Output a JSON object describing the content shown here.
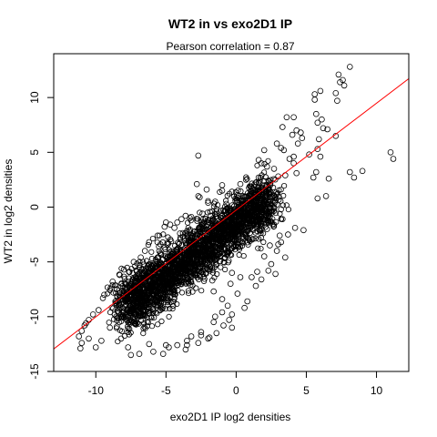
{
  "chart_data": {
    "type": "scatter",
    "title": "WT2 in vs exo2D1 IP",
    "subtitle": "Pearson correlation =  0.87",
    "xlabel": "exo2D1 IP log2 densities",
    "ylabel": "WT2 in log2 densities",
    "xlim": [
      -13,
      12.3
    ],
    "ylim": [
      -15,
      14
    ],
    "xticks": [
      -10,
      -5,
      0,
      5,
      10
    ],
    "yticks": [
      -15,
      -10,
      -5,
      0,
      5,
      10
    ],
    "grid": false,
    "legend": "none",
    "colors": {
      "points": "#000000",
      "fit_line": "#ff0000",
      "frame": "#000000"
    },
    "fit_line": {
      "slope": 0.975,
      "intercept": -0.27
    },
    "dense_cloud": {
      "x_range": [
        -8.2,
        2.5
      ],
      "approx_slope": 0.95,
      "approx_intercept": -1.5
    },
    "points": [
      [
        8.1,
        12.8
      ],
      [
        7.3,
        12.1
      ],
      [
        6.0,
        10.6
      ],
      [
        5.6,
        10.3
      ],
      [
        7.4,
        11.4
      ],
      [
        7.6,
        11.6
      ],
      [
        5.6,
        9.8
      ],
      [
        7.1,
        10.4
      ],
      [
        7.2,
        9.7
      ],
      [
        7.7,
        11.1
      ],
      [
        4.3,
        7.0
      ],
      [
        4.6,
        6.8
      ],
      [
        3.3,
        7.3
      ],
      [
        3.6,
        8.2
      ],
      [
        4.1,
        8.2
      ],
      [
        5.7,
        8.5
      ],
      [
        6.1,
        8.0
      ],
      [
        5.8,
        7.7
      ],
      [
        6.2,
        7.2
      ],
      [
        5.9,
        6.2
      ],
      [
        5.8,
        5.3
      ],
      [
        6.0,
        4.6
      ],
      [
        5.7,
        3.2
      ],
      [
        5.5,
        2.7
      ],
      [
        6.5,
        7.1
      ],
      [
        7.1,
        6.5
      ],
      [
        6.6,
        2.6
      ],
      [
        8.1,
        3.2
      ],
      [
        11.0,
        5.0
      ],
      [
        11.2,
        4.4
      ],
      [
        9.0,
        3.3
      ],
      [
        8.4,
        2.7
      ],
      [
        6.4,
        1.0
      ],
      [
        5.8,
        0.8
      ],
      [
        3.8,
        4.4
      ],
      [
        3.2,
        5.4
      ],
      [
        2.0,
        5.2
      ],
      [
        2.9,
        5.8
      ],
      [
        5.2,
        4.8
      ],
      [
        3.0,
        2.8
      ],
      [
        3.5,
        2.9
      ],
      [
        4.1,
        4.0
      ],
      [
        1.8,
        4.0
      ],
      [
        -2.7,
        4.7
      ],
      [
        -1.0,
        1.5
      ],
      [
        -2.8,
        2.1
      ],
      [
        -2.6,
        0.9
      ],
      [
        -2.0,
        0.4
      ],
      [
        -1.5,
        0.5
      ],
      [
        -0.7,
        0.3
      ],
      [
        -3.3,
        -1.0
      ],
      [
        -4.2,
        -1.4
      ],
      [
        -3.2,
        -0.9
      ],
      [
        -4.7,
        -1.6
      ],
      [
        -5.0,
        -1.4
      ],
      [
        -1.0,
        2.0
      ],
      [
        0.3,
        2.1
      ],
      [
        2.7,
        3.5
      ],
      [
        4.3,
        3.1
      ],
      [
        3.1,
        -2.6
      ],
      [
        3.7,
        -2.5
      ],
      [
        3.2,
        -3.2
      ],
      [
        2.9,
        -4.0
      ],
      [
        3.0,
        -3.4
      ],
      [
        4.2,
        -1.9
      ],
      [
        4.8,
        -2.1
      ],
      [
        3.3,
        -1.1
      ],
      [
        2.7,
        -1.6
      ],
      [
        3.2,
        -0.2
      ],
      [
        2.7,
        0.0
      ],
      [
        2.2,
        -2.0
      ],
      [
        2.4,
        -3.5
      ],
      [
        2.0,
        -4.5
      ],
      [
        -0.3,
        -6.0
      ],
      [
        -1.7,
        -6.7
      ],
      [
        -1.6,
        -7.7
      ],
      [
        -1.0,
        -8.4
      ],
      [
        -0.6,
        -9.0
      ],
      [
        -0.5,
        -10.3
      ],
      [
        -1.6,
        -10.5
      ],
      [
        -2.5,
        -11.4
      ],
      [
        -3.5,
        -12.2
      ],
      [
        -6.1,
        -6.7
      ],
      [
        -7.7,
        -6.8
      ],
      [
        -8.8,
        -6.8
      ],
      [
        -8.5,
        -7.5
      ],
      [
        -9.4,
        -8.0
      ],
      [
        -9.5,
        -8.3
      ],
      [
        -10.2,
        -9.8
      ],
      [
        -10.5,
        -10.3
      ],
      [
        -10.7,
        -10.6
      ],
      [
        -10.8,
        -10.8
      ],
      [
        -11.0,
        -11.3
      ],
      [
        -11.2,
        -11.8
      ],
      [
        -11.0,
        -12.4
      ],
      [
        -11.1,
        -12.9
      ],
      [
        -9.8,
        -9.4
      ],
      [
        -6.5,
        -4.0
      ],
      [
        -6.7,
        -6.0
      ],
      [
        -5.5,
        -3.6
      ],
      [
        -5.6,
        -4.6
      ],
      [
        -6.9,
        -7.1
      ],
      [
        -6.2,
        -12.5
      ],
      [
        -5.9,
        -13.2
      ],
      [
        -6.9,
        -13.4
      ],
      [
        -5.0,
        -12.6
      ],
      [
        -5.2,
        -13.4
      ],
      [
        -3.6,
        -13.0
      ],
      [
        -3.5,
        -12.6
      ],
      [
        -2.7,
        -12.4
      ],
      [
        -2.5,
        -11.7
      ],
      [
        -3.2,
        -11.8
      ],
      [
        -1.9,
        -11.9
      ],
      [
        -1.5,
        -10.0
      ],
      [
        -1.0,
        -9.6
      ],
      [
        -0.3,
        -9.8
      ],
      [
        0.1,
        -7.9
      ],
      [
        -0.4,
        -7.0
      ],
      [
        0.3,
        -6.4
      ],
      [
        1.5,
        -5.9
      ],
      [
        1.1,
        -6.4
      ],
      [
        2.3,
        -5.8
      ],
      [
        -7.2,
        -5.4
      ],
      [
        -7.6,
        -5.9
      ],
      [
        -7.0,
        -6.4
      ],
      [
        -5.4,
        -3.4
      ],
      [
        -5.1,
        -1.8
      ],
      [
        -4.4,
        -1.9
      ],
      [
        -4.9,
        -3.4
      ],
      [
        -3.6,
        -0.8
      ],
      [
        -3.9,
        -1.1
      ],
      [
        -2.7,
        1.0
      ],
      [
        -2.1,
        1.6
      ],
      [
        -1.4,
        -0.4
      ],
      [
        -0.3,
        1.4
      ],
      [
        0.5,
        1.0
      ],
      [
        1.1,
        1.7
      ],
      [
        1.3,
        1.1
      ],
      [
        1.6,
        2.7
      ],
      [
        0.7,
        2.5
      ],
      [
        4.1,
        4.6
      ],
      [
        4.4,
        5.8
      ],
      [
        4.7,
        6.3
      ],
      [
        4.0,
        6.6
      ],
      [
        3.4,
        5.2
      ],
      [
        1.6,
        4.3
      ],
      [
        2.2,
        3.7
      ],
      [
        -8.5,
        -10.9
      ],
      [
        -9.0,
        -11.0
      ],
      [
        -10.0,
        -12.8
      ],
      [
        -10.5,
        -12.0
      ],
      [
        -9.6,
        -12.2
      ],
      [
        -8.2,
        -12.0
      ],
      [
        -7.7,
        -12.8
      ],
      [
        -7.5,
        -13.5
      ],
      [
        -4.8,
        -12.8
      ],
      [
        -4.2,
        -12.6
      ],
      [
        -2.0,
        -12.0
      ],
      [
        -1.4,
        -11.5
      ],
      [
        -0.9,
        -10.8
      ],
      [
        -0.3,
        -11.0
      ],
      [
        0.6,
        -9.2
      ],
      [
        0.8,
        -8.6
      ],
      [
        1.4,
        -7.2
      ],
      [
        1.8,
        -6.6
      ],
      [
        2.5,
        -5.2
      ],
      [
        2.8,
        -6.1
      ],
      [
        3.5,
        -4.6
      ],
      [
        -4.0,
        -2.4
      ],
      [
        -3.1,
        -2.7
      ],
      [
        -2.4,
        -0.6
      ],
      [
        -1.8,
        -0.8
      ],
      [
        -0.9,
        -1.2
      ],
      [
        0.3,
        -0.4
      ],
      [
        0.9,
        0.0
      ],
      [
        1.6,
        0.2
      ],
      [
        2.1,
        0.6
      ],
      [
        2.4,
        1.2
      ],
      [
        -5.6,
        -2.6
      ],
      [
        -6.2,
        -3.2
      ],
      [
        -6.8,
        -4.6
      ],
      [
        -7.3,
        -5.0
      ],
      [
        -8.0,
        -5.7
      ],
      [
        -8.3,
        -6.2
      ],
      [
        -6.3,
        -5.4
      ]
    ]
  }
}
